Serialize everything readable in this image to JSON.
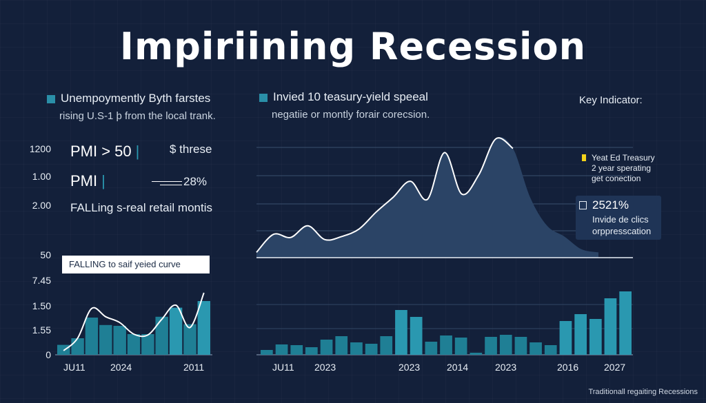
{
  "title": "Impiriining Recession",
  "left_header": {
    "title": "Unempoymently Byth farstes",
    "subtitle": "rising U.S-1 þ from the local trank."
  },
  "center_header": {
    "title": "Invied 10 teasury-yield speeal",
    "subtitle": "negatiie or montly forair corecsion."
  },
  "key_indicator": "Key Indicator:",
  "left_y_labels": [
    "1200",
    "1.00",
    "2.00",
    "50",
    "7.45",
    "1.50",
    "1.55",
    "0"
  ],
  "left_panel": {
    "pmi1": "PMI  > 50",
    "pmi1_right": "$ threse",
    "pmi2": "PMI",
    "pmi2_value": "28%",
    "falling_text": "FALLing s-real retail montis",
    "banner": "FALLING to saif yeied curve"
  },
  "legend": {
    "line1": "Yeat Ed Treasury",
    "line2": "2 year sperating",
    "line3": "get conection",
    "swatch_color": "#f2d21b"
  },
  "card": {
    "value": "2521%",
    "line1": "Invide de clics",
    "line2": "orppresscation"
  },
  "footer": "Traditionall regaiting Recessions",
  "colors": {
    "bg": "#13203a",
    "bar": "#1f7f95",
    "bar_bright": "#2a98b0",
    "area": "#2b4466",
    "line": "#ffffff"
  },
  "chart_data": [
    {
      "type": "bar",
      "name": "left-bars",
      "x_labels": [
        "JU11",
        "2024",
        "2011"
      ],
      "ylim": [
        0,
        10
      ],
      "values": [
        1.2,
        2.0,
        4.5,
        3.6,
        3.5,
        2.5,
        2.5,
        4.6,
        5.7,
        3.7,
        6.5
      ]
    },
    {
      "type": "line",
      "name": "left-line",
      "ylim": [
        0,
        10
      ],
      "values": [
        0.5,
        2.0,
        5.6,
        4.6,
        3.9,
        2.5,
        2.4,
        4.3,
        6.0,
        3.3,
        7.5
      ]
    },
    {
      "type": "area",
      "name": "center-area",
      "ylim": [
        0,
        100
      ],
      "values": [
        5,
        22,
        19,
        30,
        17,
        20,
        27,
        43,
        57,
        72,
        55,
        99,
        60,
        78,
        112,
        103,
        57,
        30,
        20,
        8,
        5
      ],
      "smooth_tail": true
    },
    {
      "type": "bar",
      "name": "center-bars",
      "x_labels": [
        "JU11",
        "2023",
        "2023",
        "2014",
        "2023",
        "2016",
        "2027"
      ],
      "ylim": [
        0,
        12
      ],
      "values": [
        0.7,
        1.5,
        1.4,
        1.1,
        2.2,
        2.7,
        1.8,
        1.6,
        2.7,
        6.5,
        5.5,
        1.9,
        2.8,
        2.5,
        0.3,
        2.6,
        2.9,
        2.6,
        1.8,
        1.4,
        4.9,
        5.9,
        5.2,
        8.2,
        9.2
      ]
    }
  ]
}
